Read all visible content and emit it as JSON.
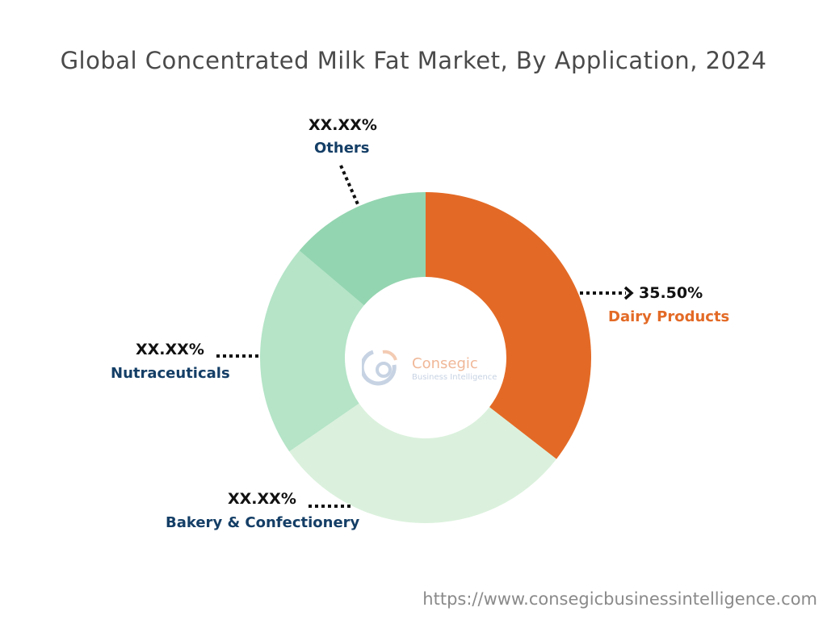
{
  "title": "Global Concentrated Milk Fat Market, By Application, 2024",
  "footer_url": "https://www.consegicbusinessintelligence.com",
  "logo": {
    "name": "Consegic",
    "tagline": "Business Intelligence"
  },
  "chart_data": {
    "type": "pie",
    "style": "donut",
    "title": "Global Concentrated Milk Fat Market, By Application, 2024",
    "categories": [
      "Dairy Products",
      "Bakery & Confectionery",
      "Nutraceuticals",
      "Others"
    ],
    "values": [
      35.5,
      29.9,
      20.8,
      13.8
    ],
    "labels": [
      "35.50%",
      "XX.XX%",
      "XX.XX%",
      "XX.XX%"
    ],
    "colors": [
      "#E36A26",
      "#DBF1DD",
      "#B5E4C7",
      "#93D5B0"
    ],
    "label_colors": [
      "#E36A26",
      "#143E66",
      "#143E66",
      "#143E66"
    ]
  }
}
